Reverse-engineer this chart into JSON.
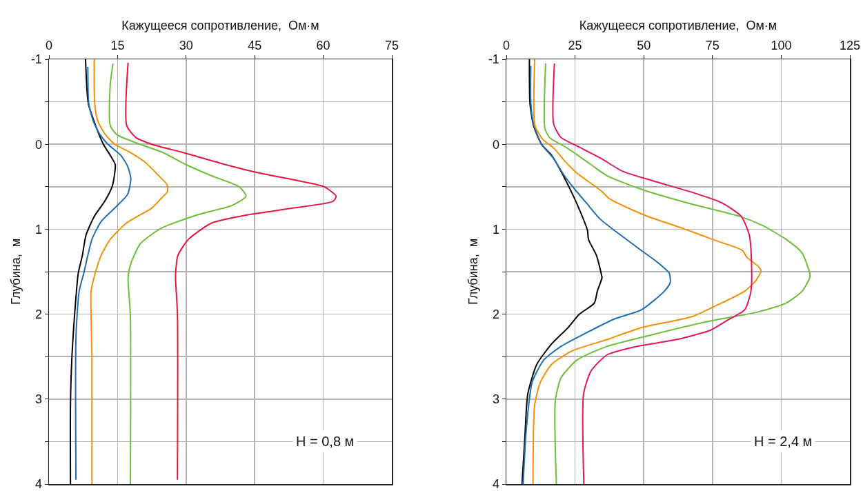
{
  "chart_data": [
    {
      "type": "line",
      "xlabel": "Кажущееся сопротивление,  Ом·м",
      "ylabel": "Глубина,  м",
      "xlim": [
        0,
        75
      ],
      "xticks": [
        0,
        15,
        30,
        45,
        60,
        75
      ],
      "ylim": [
        4,
        -1
      ],
      "yticks": [
        -1,
        {
          "value": -0.5,
          "label": null
        },
        0,
        {
          "value": 0.5,
          "label": null
        },
        1,
        {
          "value": 1.5,
          "label": null
        },
        2,
        {
          "value": 2.5,
          "label": null
        },
        3,
        {
          "value": 3.5,
          "label": null
        },
        4
      ],
      "grid": true,
      "line_style": "solid",
      "annotations": [
        "H = 0,8 м"
      ],
      "series": [
        {
          "color": "#000000",
          "x": [
            8.0,
            8.6,
            10.2,
            11.9,
            13.4,
            14.5,
            14.3,
            13.8,
            12.2,
            9.9,
            8.1,
            7.3,
            6.4,
            5.8,
            5.0,
            4.7,
            4.7
          ],
          "values": [
            -1,
            -0.48,
            -0.22,
            0,
            0.13,
            0.24,
            0.37,
            0.5,
            0.67,
            0.85,
            1.07,
            1.31,
            1.52,
            1.87,
            2.53,
            3.07,
            4.0
          ]
        },
        {
          "color": "#1f6db3",
          "x": [
            8.5,
            8.7,
            9.7,
            11.2,
            12.9,
            15.7,
            17.2,
            17.9,
            17.2,
            14.4,
            11.4,
            9.4,
            7.6,
            6.6,
            5.9,
            5.9
          ],
          "values": [
            -0.91,
            -0.48,
            -0.27,
            -0.11,
            0,
            0.13,
            0.26,
            0.4,
            0.59,
            0.75,
            0.91,
            1.12,
            1.52,
            1.73,
            2.27,
            3.95
          ]
        },
        {
          "color": "#f0900a",
          "x": [
            9.9,
            10.0,
            10.7,
            12.4,
            14.4,
            17.9,
            21.0,
            24.0,
            25.9,
            25.9,
            24.5,
            22.5,
            16.9,
            13.4,
            11.4,
            10.1,
            9.2,
            9.2,
            9.4,
            9.4
          ],
          "values": [
            -1,
            -0.48,
            -0.27,
            -0.11,
            0,
            0.1,
            0.21,
            0.37,
            0.48,
            0.56,
            0.64,
            0.75,
            0.93,
            1.12,
            1.31,
            1.52,
            1.73,
            2.0,
            2.53,
            4.0
          ]
        },
        {
          "color": "#6cbf3a",
          "x": [
            14.0,
            13.4,
            13.4,
            14.9,
            18.4,
            25.0,
            30.0,
            35.5,
            41.6,
            43.1,
            40.1,
            32.5,
            24.5,
            20.0,
            18.0,
            17.4,
            17.3,
            17.8,
            17.8
          ],
          "values": [
            -0.95,
            -0.7,
            -0.22,
            -0.11,
            -0.03,
            0.1,
            0.24,
            0.37,
            0.5,
            0.61,
            0.72,
            0.83,
            0.99,
            1.17,
            1.39,
            1.52,
            1.6,
            2.0,
            4.0
          ]
        },
        {
          "color": "#e3173e",
          "x": [
            17.3,
            17.0,
            19.0,
            22.5,
            29.5,
            38.6,
            46.1,
            54.6,
            60.2,
            62.8,
            62.2,
            53.6,
            43.6,
            35.5,
            30.5,
            28.2,
            27.7,
            27.7,
            28.1,
            28.1
          ],
          "values": [
            -0.96,
            -0.22,
            -0.08,
            0,
            0.1,
            0.24,
            0.34,
            0.43,
            0.5,
            0.61,
            0.67,
            0.75,
            0.83,
            0.93,
            1.12,
            1.31,
            1.52,
            1.6,
            2.0,
            3.95
          ]
        }
      ]
    },
    {
      "type": "line",
      "xlabel": "Кажущееся сопротивление,  Ом·м",
      "ylabel": "Глубина,  м",
      "xlim": [
        0,
        125
      ],
      "xticks": [
        0,
        25,
        50,
        75,
        100,
        125
      ],
      "ylim": [
        4,
        -1
      ],
      "yticks": [
        -1,
        {
          "value": -0.5,
          "label": null
        },
        0,
        {
          "value": 0.5,
          "label": null
        },
        1,
        {
          "value": 1.5,
          "label": null
        },
        2,
        {
          "value": 2.5,
          "label": null
        },
        3,
        {
          "value": 3.5,
          "label": null
        },
        4
      ],
      "grid": true,
      "line_style": "solid",
      "annotations": [
        "H = 2,4 м"
      ],
      "series": [
        {
          "color": "#000000",
          "x": [
            8.4,
            8.6,
            9.9,
            12.8,
            16.5,
            19.9,
            24.1,
            27.0,
            29.5,
            29.9,
            32.8,
            34.5,
            34.8,
            33.1,
            32.0,
            26.6,
            22.4,
            16.5,
            11.1,
            7.8,
            6.7,
            5.7
          ],
          "values": [
            -1,
            -0.48,
            -0.22,
            0,
            0.13,
            0.32,
            0.59,
            0.8,
            1.01,
            1.12,
            1.31,
            1.52,
            1.57,
            1.73,
            1.87,
            2.0,
            2.16,
            2.35,
            2.59,
            2.94,
            3.47,
            4.0
          ]
        },
        {
          "color": "#1f6db3",
          "x": [
            8.9,
            8.9,
            9.9,
            12.8,
            17.0,
            21.1,
            24.9,
            29.1,
            34.1,
            41.6,
            49.1,
            55.0,
            59.3,
            59.6,
            57.5,
            49.1,
            39.1,
            29.1,
            19.9,
            13.6,
            9.4,
            7.3,
            6.1
          ],
          "values": [
            -0.92,
            -0.48,
            -0.24,
            0,
            0.16,
            0.37,
            0.53,
            0.69,
            0.88,
            1.07,
            1.25,
            1.39,
            1.52,
            1.63,
            1.73,
            1.95,
            2.06,
            2.22,
            2.38,
            2.54,
            2.8,
            3.34,
            4.0
          ]
        },
        {
          "color": "#f0900a",
          "x": [
            10.3,
            10.4,
            13.2,
            17.4,
            21.6,
            25.7,
            31.6,
            34.9,
            37.4,
            49.9,
            64.2,
            75.0,
            85.9,
            87.5,
            91.7,
            92.7,
            90.9,
            86.7,
            75.0,
            67.5,
            49.1,
            36.6,
            24.1,
            16.5,
            12.4,
            10.3,
            9.7
          ],
          "values": [
            -1,
            -0.22,
            -0.06,
            0.05,
            0.21,
            0.34,
            0.48,
            0.56,
            0.64,
            0.83,
            0.99,
            1.12,
            1.25,
            1.33,
            1.44,
            1.49,
            1.6,
            1.73,
            1.92,
            2.03,
            2.16,
            2.3,
            2.43,
            2.59,
            2.8,
            3.07,
            4.0
          ]
        },
        {
          "color": "#6cbf3a",
          "x": [
            14.3,
            14.0,
            15.7,
            22.4,
            30.8,
            36.6,
            49.1,
            65.8,
            85.0,
            93.4,
            101.8,
            107.6,
            110.4,
            110.4,
            107.6,
            101.8,
            90.9,
            74.2,
            53.3,
            36.6,
            25.7,
            19.9,
            17.8,
            18.2
          ],
          "values": [
            -0.95,
            -0.19,
            -0.08,
            0.05,
            0.24,
            0.37,
            0.53,
            0.69,
            0.85,
            0.96,
            1.12,
            1.28,
            1.52,
            1.57,
            1.73,
            1.87,
            1.98,
            2.08,
            2.24,
            2.38,
            2.54,
            2.75,
            3.02,
            4.0
          ]
        },
        {
          "color": "#e0175e",
          "x": [
            17.5,
            17.2,
            19.9,
            25.7,
            34.1,
            42.4,
            53.3,
            69.9,
            78.4,
            85.5,
            88.4,
            89.2,
            89.0,
            86.7,
            80.0,
            74.2,
            61.7,
            47.4,
            36.6,
            30.8,
            28.1,
            28.2
          ],
          "values": [
            -0.95,
            -0.24,
            -0.08,
            0.02,
            0.16,
            0.32,
            0.43,
            0.59,
            0.69,
            0.85,
            1.07,
            1.39,
            1.73,
            1.95,
            2.08,
            2.19,
            2.3,
            2.38,
            2.48,
            2.67,
            2.94,
            4.0
          ]
        }
      ]
    }
  ]
}
